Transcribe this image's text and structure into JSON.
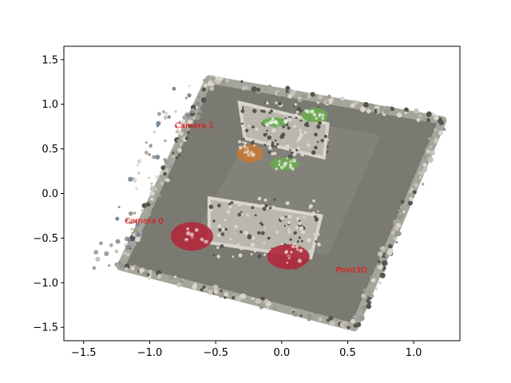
{
  "chart_data": {
    "type": "scatter",
    "title": "",
    "xlabel": "",
    "ylabel": "",
    "xlim": [
      -1.65,
      1.35
    ],
    "ylim": [
      -1.65,
      1.65
    ],
    "grid": false,
    "x_ticks": [
      -1.5,
      -1.0,
      -0.5,
      0.0,
      0.5,
      1.0
    ],
    "x_tick_labels": [
      "−1.5",
      "−1.0",
      "−0.5",
      "0.0",
      "0.5",
      "1.0"
    ],
    "y_ticks": [
      1.5,
      1.0,
      0.5,
      0.0,
      -0.5,
      -1.0,
      -1.5
    ],
    "y_tick_labels": [
      "1.5",
      "1.0",
      "0.5",
      "0.0",
      "−0.5",
      "−1.0",
      "−1.5"
    ],
    "annotation_color": "#ff0000",
    "annotations": [
      {
        "text": "Camera 1",
        "x": -0.81,
        "y": 0.77
      },
      {
        "text": "Camera 0",
        "x": -1.19,
        "y": -0.3
      },
      {
        "text": "Point3D",
        "x": 0.41,
        "y": -0.85
      }
    ],
    "scene": {
      "floor": [
        [
          -0.55,
          1.28
        ],
        [
          1.22,
          0.82
        ],
        [
          0.55,
          -1.5
        ],
        [
          -1.22,
          -0.82
        ]
      ],
      "inner_patch": [
        [
          -0.15,
          0.9
        ],
        [
          0.75,
          0.65
        ],
        [
          0.35,
          -0.7
        ],
        [
          -0.62,
          -0.35
        ]
      ],
      "upper_shelf": [
        [
          -0.32,
          1.02
        ],
        [
          0.35,
          0.78
        ],
        [
          0.32,
          0.4
        ],
        [
          -0.28,
          0.62
        ]
      ],
      "lower_shelf": [
        [
          -0.55,
          -0.05
        ],
        [
          0.3,
          -0.25
        ],
        [
          0.22,
          -0.72
        ],
        [
          -0.55,
          -0.55
        ]
      ],
      "red_objects": [
        {
          "x": -0.68,
          "y": -0.48,
          "rx": 0.16,
          "ry": 0.16
        },
        {
          "x": 0.05,
          "y": -0.71,
          "rx": 0.16,
          "ry": 0.14
        }
      ],
      "green_objects": [
        {
          "x": -0.05,
          "y": 0.8,
          "rx": 0.1,
          "ry": 0.05
        },
        {
          "x": 0.25,
          "y": 0.88,
          "rx": 0.1,
          "ry": 0.08
        },
        {
          "x": 0.02,
          "y": 0.33,
          "rx": 0.11,
          "ry": 0.07
        }
      ],
      "orange_objects": [
        {
          "x": -0.24,
          "y": 0.45,
          "rx": 0.1,
          "ry": 0.1
        }
      ],
      "colors": {
        "floor": "#7b7a72",
        "inner": "#8b8a82",
        "edge": "#a6a59c",
        "light": "#d8d6ce",
        "dark": "#55544e",
        "red": "#b02a3c",
        "green": "#6aa84f",
        "orange": "#c47a3a",
        "blue_grey": "#7b8a9a"
      }
    }
  }
}
